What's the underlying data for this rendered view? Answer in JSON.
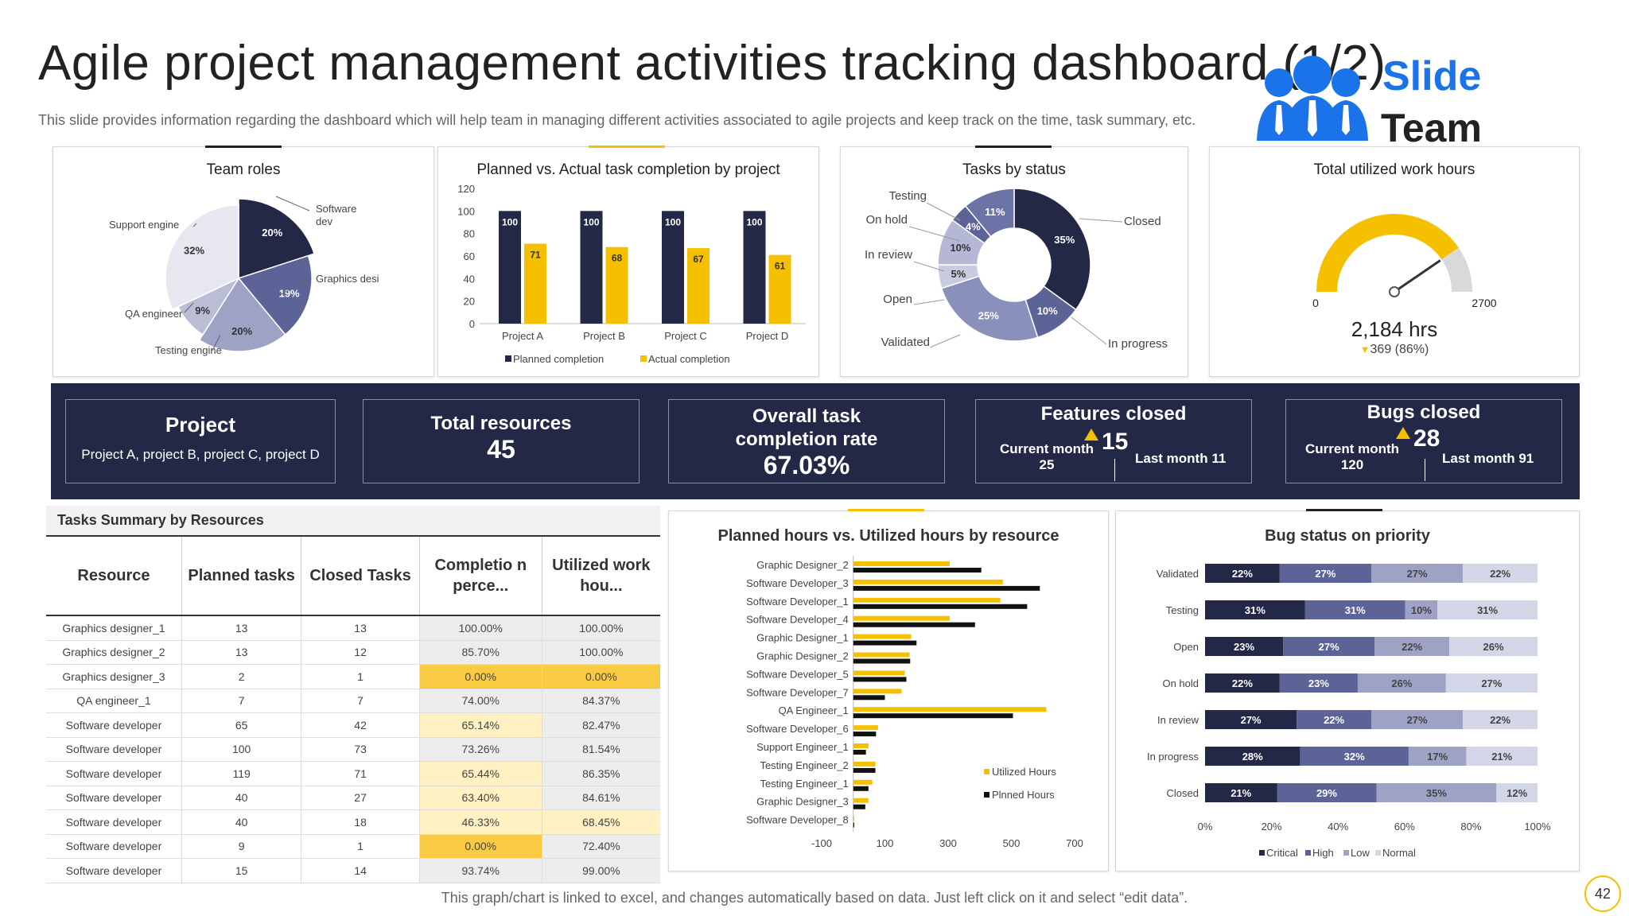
{
  "header": {
    "title": "Agile project management activities tracking dashboard (1/2)",
    "subtitle": "This slide provides information regarding the dashboard which will help team in managing different activities associated to agile projects and keep track on the time, task summary, etc."
  },
  "logo": {
    "word1": "Slide",
    "word2": "Team",
    "icon": "team-people-icon"
  },
  "colors": {
    "navy": "#232846",
    "yellow": "#f5c000",
    "mid": "#5c6396",
    "light": "#9ea3c6",
    "pale": "#d3d6e6",
    "gray": "#d9d9d9"
  },
  "team_roles": {
    "title": "Team roles",
    "chart_data": {
      "type": "pie",
      "title": "Team roles",
      "labels": [
        "Software dev",
        "Graphics desi",
        "Testing engine",
        "QA engineer",
        "Support engine"
      ],
      "values": [
        20,
        19,
        20,
        9,
        32
      ],
      "value_labels": [
        "20%",
        "19%",
        "20%",
        "9%",
        "32%"
      ]
    }
  },
  "planned_vs_actual": {
    "title": "Planned vs. Actual task completion by project",
    "chart_data": {
      "type": "bar",
      "title": "Planned vs. Actual task completion by project",
      "categories": [
        "Project A",
        "Project B",
        "Project C",
        "Project D"
      ],
      "series": [
        {
          "name": "Planned completion",
          "values": [
            100,
            100,
            100,
            100
          ]
        },
        {
          "name": "Actual completion",
          "values": [
            71,
            68,
            67,
            61
          ]
        }
      ],
      "ylim": [
        0,
        120
      ],
      "yticks": [
        "0",
        "20",
        "40",
        "60",
        "80",
        "100",
        "120"
      ]
    }
  },
  "tasks_by_status": {
    "title": "Tasks by status",
    "chart_data": {
      "type": "pie",
      "title": "Tasks by status",
      "labels": [
        "Closed",
        "In progress",
        "Validated",
        "Open",
        "In review",
        "On hold",
        "Testing"
      ],
      "values": [
        35,
        10,
        25,
        5,
        10,
        4,
        11
      ],
      "value_labels": [
        "35%",
        "10%",
        "25%",
        "5%",
        "10%",
        "4%",
        "11%"
      ]
    }
  },
  "work_hours": {
    "title": "Total utilized work hours",
    "min_label": "0",
    "max_label": "2700",
    "value": 2184,
    "max": 2700,
    "value_label": "2,184 hrs",
    "delta_label": "369 (86%)"
  },
  "kpis": {
    "project": {
      "title": "Project",
      "value": "Project A,  project B, project C, project D"
    },
    "resources": {
      "title": "Total resources",
      "value": "45"
    },
    "completion": {
      "title": "Overall task completion rate",
      "value": "67.03%"
    },
    "features": {
      "title": "Features closed",
      "current_label": "Current month",
      "current_value": "25",
      "value": "15",
      "last_label": "Last month 11"
    },
    "bugs": {
      "title": "Bugs closed",
      "current_label": "Current month",
      "current_value": "120",
      "value": "28",
      "last_label": "Last month 91"
    }
  },
  "tasks_summary": {
    "title": "Tasks Summary by Resources",
    "columns": [
      "Resource",
      "Planned tasks",
      "Closed Tasks",
      "Completio n perce...",
      "Utilized work hou..."
    ],
    "rows": [
      [
        "Graphics designer_1",
        "13",
        "13",
        "100.00%",
        "100.00%"
      ],
      [
        "Graphics designer_2",
        "13",
        "12",
        "85.70%",
        "100.00%"
      ],
      [
        "Graphics designer_3",
        "2",
        "1",
        "0.00%",
        "0.00%"
      ],
      [
        "QA engineer_1",
        "7",
        "7",
        "74.00%",
        "84.37%"
      ],
      [
        "Software developer",
        "65",
        "42",
        "65.14%",
        "82.47%"
      ],
      [
        "Software developer",
        "100",
        "73",
        "73.26%",
        "81.54%"
      ],
      [
        "Software developer",
        "119",
        "71",
        "65.44%",
        "86.35%"
      ],
      [
        "Software developer",
        "40",
        "27",
        "63.40%",
        "84.61%"
      ],
      [
        "Software developer",
        "40",
        "18",
        "46.33%",
        "68.45%"
      ],
      [
        "Software developer",
        "9",
        "1",
        "0.00%",
        "72.40%"
      ],
      [
        "Software developer",
        "15",
        "14",
        "93.74%",
        "99.00%"
      ]
    ]
  },
  "hours_by_resource": {
    "title": "Planned hours vs. Utilized hours by resource",
    "chart_data": {
      "type": "bar",
      "orientation": "horizontal",
      "title": "Planned hours vs. Utilized hours by resource",
      "categories": [
        "Graphic Designer_2",
        "Software Developer_3",
        "Software Developer_1",
        "Software Developer_4",
        "Graphic Designer_1",
        "Graphic Designer_2",
        "Software Developer_5",
        "Software Developer_7",
        "QA Engineer_1",
        "Software Developer_6",
        "Support Engineer_1",
        "Testing Engineer_2",
        "Testing Engineer_1",
        "Graphic Designer_3",
        "Software Developer_8"
      ],
      "series": [
        {
          "name": "Utilized Hours",
          "values": [
            305,
            473,
            465,
            305,
            183,
            178,
            163,
            153,
            610,
            78,
            48,
            70,
            60,
            48,
            3
          ]
        },
        {
          "name": "Plnned Hours",
          "values": [
            405,
            590,
            550,
            385,
            200,
            180,
            168,
            100,
            505,
            72,
            40,
            70,
            48,
            38,
            3
          ]
        }
      ],
      "xlim": [
        -100,
        700
      ],
      "xticks": [
        "-100",
        "100",
        "300",
        "500",
        "700"
      ]
    }
  },
  "bug_priority": {
    "title": "Bug status on priority",
    "chart_data": {
      "type": "bar",
      "orientation": "horizontal",
      "stacked": "percent",
      "title": "Bug status on priority",
      "categories": [
        "Validated",
        "Testing",
        "Open",
        "On hold",
        "In review",
        "In progress",
        "Closed"
      ],
      "series": [
        {
          "name": "Critical",
          "values": [
            22,
            31,
            23,
            22,
            27,
            28,
            21
          ]
        },
        {
          "name": "High",
          "values": [
            27,
            31,
            27,
            23,
            22,
            32,
            29
          ]
        },
        {
          "name": "Low",
          "values": [
            27,
            10,
            22,
            26,
            27,
            17,
            35
          ]
        },
        {
          "name": "Normal",
          "values": [
            22,
            31,
            26,
            27,
            22,
            21,
            12
          ]
        }
      ],
      "xticks": [
        "0%",
        "20%",
        "40%",
        "60%",
        "80%",
        "100%"
      ]
    }
  },
  "footer": {
    "note": "This graph/chart is linked to excel,  and changes automatically based on data. Just left click on it and select “edit data”.",
    "page_number": "42"
  }
}
